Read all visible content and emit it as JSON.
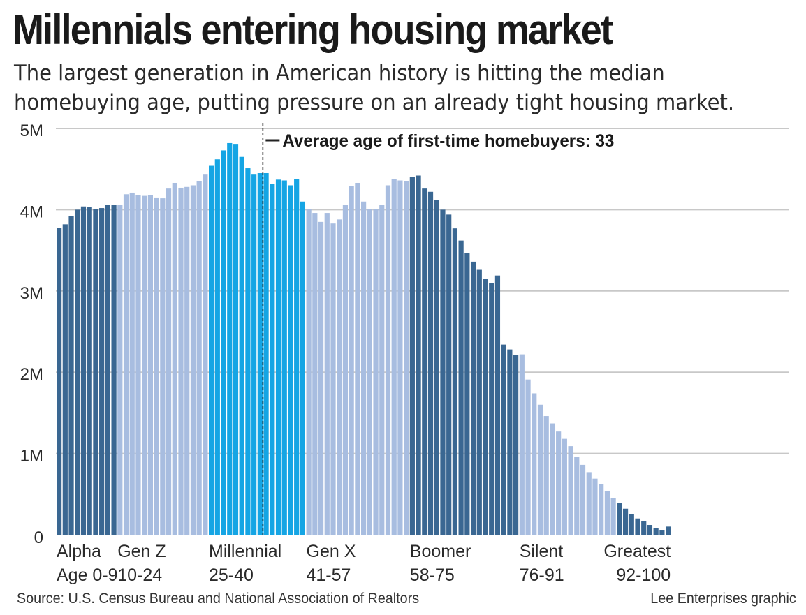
{
  "header": {
    "title": "Millennials entering housing market",
    "subtitle_line1": "The largest generation in American history is hitting the median",
    "subtitle_line2": "homebuying age, putting pressure on an already tight housing market."
  },
  "footer": {
    "source": "Source: U.S. Census Bureau and National Association of Realtors",
    "credit": "Lee Enterprises graphic"
  },
  "colors": {
    "dark": "#3a6792",
    "light": "#a8bde0",
    "millennial": "#15a5e4",
    "grid": "#c8c8c8",
    "marker": "#222222"
  },
  "chart_data": {
    "type": "bar",
    "x_label": "Age",
    "x_range": [
      0,
      100
    ],
    "ylim": [
      0,
      5000000
    ],
    "y_ticks": [
      {
        "value": 0,
        "label": "0"
      },
      {
        "value": 1000000,
        "label": "1M"
      },
      {
        "value": 2000000,
        "label": "2M"
      },
      {
        "value": 3000000,
        "label": "3M"
      },
      {
        "value": 4000000,
        "label": "4M"
      },
      {
        "value": 5000000,
        "label": "5M"
      }
    ],
    "grid": true,
    "generations": [
      {
        "name": "Alpha",
        "range_label": "Age 0-9",
        "from": 0,
        "to": 9,
        "color": "dark"
      },
      {
        "name": "Gen Z",
        "range_label": "10-24",
        "from": 10,
        "to": 24,
        "color": "light"
      },
      {
        "name": "Millennial",
        "range_label": "25-40",
        "from": 25,
        "to": 40,
        "color": "millennial"
      },
      {
        "name": "Gen X",
        "range_label": "41-57",
        "from": 41,
        "to": 57,
        "color": "light"
      },
      {
        "name": "Boomer",
        "range_label": "58-75",
        "from": 58,
        "to": 75,
        "color": "dark"
      },
      {
        "name": "Silent",
        "range_label": "76-91",
        "from": 76,
        "to": 91,
        "color": "light"
      },
      {
        "name": "Greatest",
        "range_label": "92-100",
        "from": 92,
        "to": 100,
        "color": "dark"
      }
    ],
    "annotation": {
      "age": 33,
      "text": "Average age of first-time homebuyers: 33"
    },
    "values": [
      3780000,
      3820000,
      3920000,
      4000000,
      4040000,
      4030000,
      4010000,
      4020000,
      4060000,
      4060000,
      4060000,
      4190000,
      4210000,
      4180000,
      4170000,
      4180000,
      4150000,
      4140000,
      4260000,
      4330000,
      4270000,
      4280000,
      4300000,
      4350000,
      4440000,
      4540000,
      4620000,
      4730000,
      4820000,
      4810000,
      4650000,
      4510000,
      4440000,
      4450000,
      4450000,
      4320000,
      4370000,
      4360000,
      4300000,
      4380000,
      4100000,
      4010000,
      3960000,
      3850000,
      3960000,
      3830000,
      3880000,
      4060000,
      4290000,
      4330000,
      4100000,
      4010000,
      4010000,
      4060000,
      4300000,
      4380000,
      4360000,
      4350000,
      4400000,
      4420000,
      4260000,
      4220000,
      4120000,
      4000000,
      3940000,
      3770000,
      3620000,
      3470000,
      3360000,
      3260000,
      3150000,
      3100000,
      3190000,
      2340000,
      2280000,
      2210000,
      2220000,
      1910000,
      1740000,
      1600000,
      1460000,
      1370000,
      1270000,
      1180000,
      1090000,
      960000,
      860000,
      770000,
      690000,
      620000,
      540000,
      450000,
      390000,
      320000,
      250000,
      200000,
      170000,
      120000,
      80000,
      60000,
      100000
    ]
  }
}
